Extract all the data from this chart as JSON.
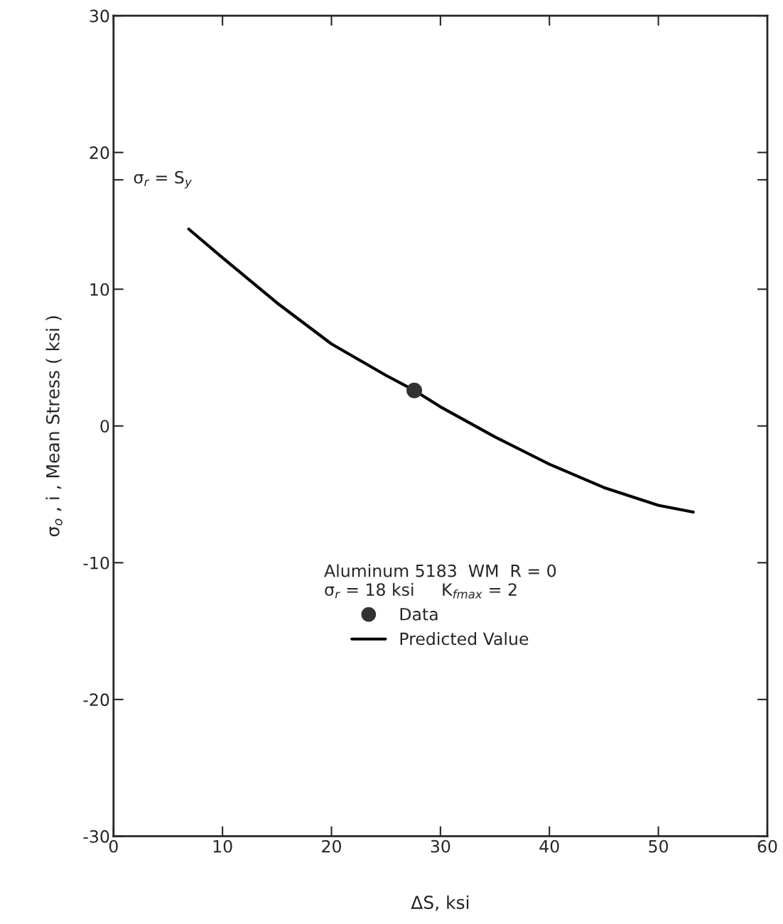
{
  "chart_data": {
    "type": "line",
    "xlabel": "ΔS, ksi",
    "ylabel": "σ$_{o}$ , i , Mean Stress ( ksi )",
    "xlim": [
      0,
      60
    ],
    "xticks": [
      0,
      10,
      20,
      30,
      40,
      50,
      60
    ],
    "ylim": [
      -30,
      30
    ],
    "yticks": [
      -30,
      -20,
      -10,
      0,
      10,
      {
        "value": 18,
        "label": null
      },
      20,
      30
    ],
    "legend_title": "Aluminum 5183  WM  R = 0\nσ$_{r}$ = 18 ksi     K$_{fmax}$ = 2",
    "legend": "bottom",
    "grid": false,
    "annotations": [
      "σ$_{r}$ = S$_{y}$"
    ],
    "series": [
      {
        "name": "Data",
        "type": "scatter",
        "marker": "circle",
        "color": "#333333",
        "x": [
          27.6
        ],
        "values": [
          2.6
        ]
      },
      {
        "name": "Predicted Value",
        "marker": "none",
        "line_style": "solid",
        "color": "#000000",
        "x": [
          6.9,
          10,
          15,
          20,
          25,
          27.6,
          30,
          35,
          40,
          45,
          50,
          53.2
        ],
        "values": [
          14.4,
          12.3,
          9.0,
          6.0,
          3.7,
          2.6,
          1.4,
          -0.8,
          -2.8,
          -4.5,
          -5.8,
          -6.3
        ]
      }
    ]
  }
}
